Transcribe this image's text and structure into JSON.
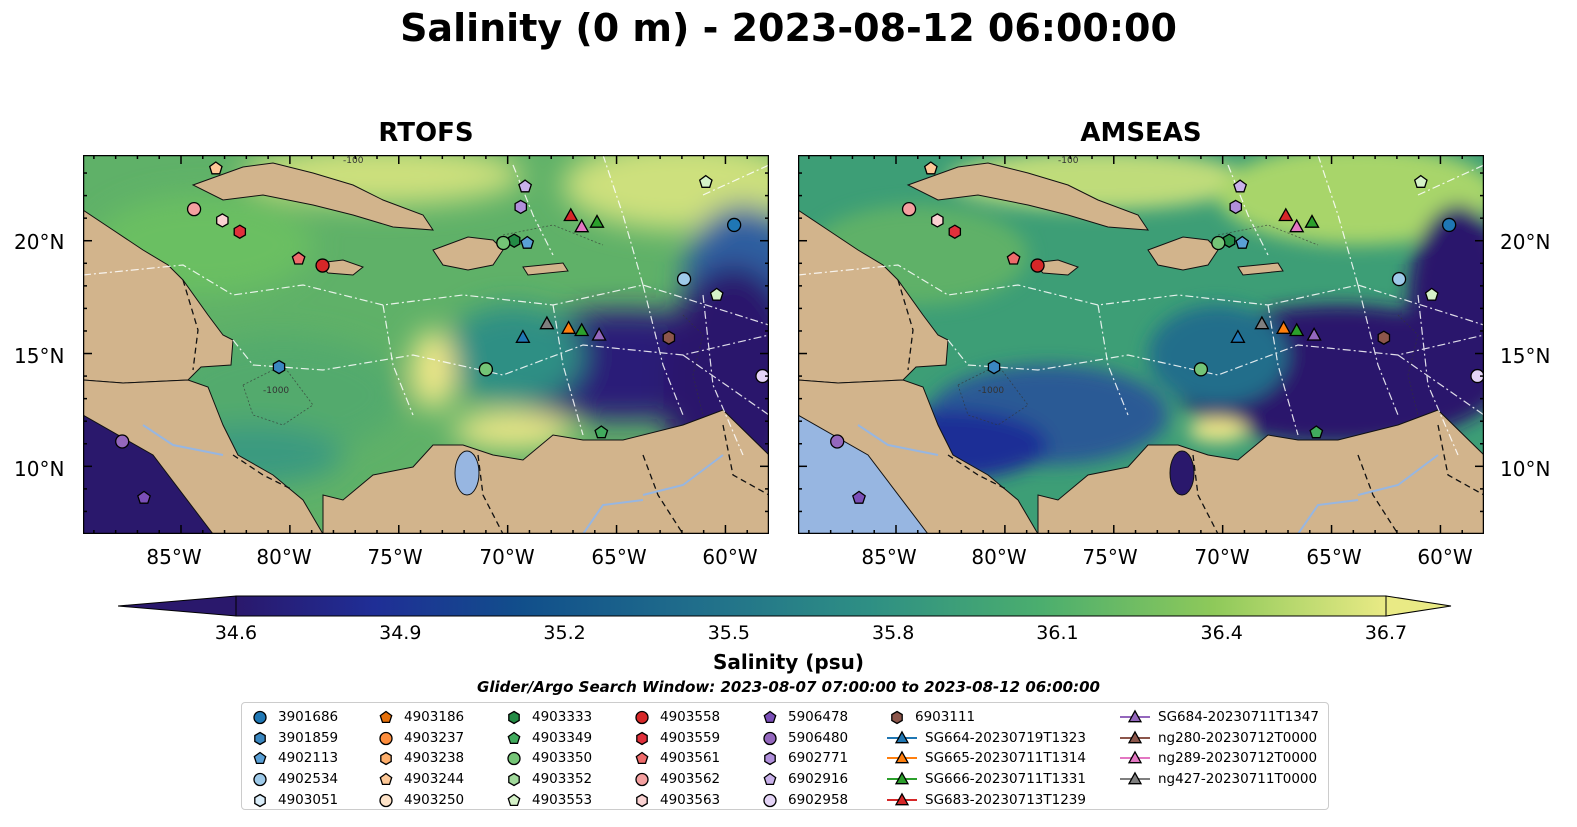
{
  "title": "Salinity (0 m) - 2023-08-12 06:00:00",
  "panels": [
    {
      "title": "RTOFS"
    },
    {
      "title": "AMSEAS"
    }
  ],
  "lat_labels": [
    "20°N",
    "15°N",
    "10°N"
  ],
  "lon_labels": [
    "85°W",
    "80°W",
    "75°W",
    "70°W",
    "65°W",
    "60°W"
  ],
  "colorbar": {
    "label": "Salinity (psu)",
    "ticks": [
      "34.6",
      "34.9",
      "35.2",
      "35.5",
      "35.8",
      "36.1",
      "36.4",
      "36.7"
    ],
    "vmin": 34.6,
    "vmax": 36.7,
    "colormap": "haline",
    "extend": "both"
  },
  "contour_labels": [
    "-100",
    "-1000"
  ],
  "search_window": "Glider/Argo Search Window: 2023-08-07 07:00:00 to 2023-08-12 06:00:00",
  "colors": {
    "land": "#d2b48c",
    "lake": "#97b6e1",
    "salinity_low": "#2a186c",
    "salinity_high": "#e8e888"
  },
  "legend": [
    [
      {
        "label": "3901686",
        "marker": "circle",
        "color": "#1f77b4"
      },
      {
        "label": "3901859",
        "marker": "hexagon",
        "color": "#3a87c0"
      },
      {
        "label": "4902113",
        "marker": "pentagon",
        "color": "#5aa0d6"
      },
      {
        "label": "4902534",
        "marker": "circle",
        "color": "#9ecae9"
      },
      {
        "label": "4903051",
        "marker": "hexagon",
        "color": "#dbeefa"
      }
    ],
    [
      {
        "label": "4903186",
        "marker": "pentagon",
        "color": "#e6700b"
      },
      {
        "label": "4903237",
        "marker": "circle",
        "color": "#fd8d3c"
      },
      {
        "label": "4903238",
        "marker": "hexagon",
        "color": "#fdae6b"
      },
      {
        "label": "4903244",
        "marker": "pentagon",
        "color": "#fdc897"
      },
      {
        "label": "4903250",
        "marker": "circle",
        "color": "#fee3c8"
      }
    ],
    [
      {
        "label": "4903333",
        "marker": "hexagon",
        "color": "#238b45"
      },
      {
        "label": "4903349",
        "marker": "pentagon",
        "color": "#41ab5d"
      },
      {
        "label": "4903350",
        "marker": "circle",
        "color": "#74c476"
      },
      {
        "label": "4903352",
        "marker": "hexagon",
        "color": "#a1d99b"
      },
      {
        "label": "4903553",
        "marker": "pentagon",
        "color": "#d5f2c8"
      }
    ],
    [
      {
        "label": "4903558",
        "marker": "circle",
        "color": "#d62728"
      },
      {
        "label": "4903559",
        "marker": "hexagon",
        "color": "#e0303b"
      },
      {
        "label": "4903561",
        "marker": "pentagon",
        "color": "#ef6b6b"
      },
      {
        "label": "4903562",
        "marker": "circle",
        "color": "#f4a0a0"
      },
      {
        "label": "4903563",
        "marker": "hexagon",
        "color": "#fad2d2"
      }
    ],
    [
      {
        "label": "5906478",
        "marker": "pentagon",
        "color": "#7b4fb8"
      },
      {
        "label": "5906480",
        "marker": "circle",
        "color": "#9467bd"
      },
      {
        "label": "6902771",
        "marker": "hexagon",
        "color": "#b08fdb"
      },
      {
        "label": "6902916",
        "marker": "pentagon",
        "color": "#c9b1ea"
      },
      {
        "label": "6902958",
        "marker": "circle",
        "color": "#e4d4f6"
      }
    ],
    [
      {
        "label": "6903111",
        "marker": "hexagon",
        "color": "#8c564b"
      },
      {
        "label": "SG664-20230719T1323",
        "marker": "triangle",
        "color": "#1f77b4",
        "line": true
      },
      {
        "label": "SG665-20230711T1314",
        "marker": "triangle",
        "color": "#ff7f0e",
        "line": true
      },
      {
        "label": "SG666-20230711T1331",
        "marker": "triangle",
        "color": "#2ca02c",
        "line": true
      },
      {
        "label": "SG683-20230713T1239",
        "marker": "triangle",
        "color": "#d62728",
        "line": true
      }
    ],
    [
      {
        "label": "SG684-20230711T1347",
        "marker": "triangle",
        "color": "#9467bd",
        "line": true
      },
      {
        "label": "ng280-20230712T0000",
        "marker": "triangle",
        "color": "#8c564b",
        "line": true
      },
      {
        "label": "ng289-20230712T0000",
        "marker": "triangle",
        "color": "#e377c2",
        "line": true
      },
      {
        "label": "ng427-20230711T0000",
        "marker": "triangle",
        "color": "#7f7f7f",
        "line": true
      }
    ]
  ],
  "observations": [
    {
      "label": "4903562",
      "lon": -84.4,
      "lat": 21.4
    },
    {
      "label": "4903563",
      "lon": -83.1,
      "lat": 20.9
    },
    {
      "label": "4903559",
      "lon": -82.3,
      "lat": 20.4
    },
    {
      "label": "4903244",
      "lon": -83.4,
      "lat": 23.2
    },
    {
      "label": "4903561",
      "lon": -79.6,
      "lat": 19.2
    },
    {
      "label": "4903558",
      "lon": -78.5,
      "lat": 18.9
    },
    {
      "label": "3901859",
      "lon": -80.5,
      "lat": 14.4
    },
    {
      "label": "4903333",
      "lon": -69.7,
      "lat": 20.0
    },
    {
      "label": "4903350",
      "lon": -70.2,
      "lat": 19.9
    },
    {
      "label": "4902113",
      "lon": -69.1,
      "lat": 19.9
    },
    {
      "label": "6902771",
      "lon": -69.4,
      "lat": 21.5
    },
    {
      "label": "6902916",
      "lon": -69.2,
      "lat": 22.4
    },
    {
      "label": "SG683-20230713T1239",
      "lon": -67.1,
      "lat": 21.1
    },
    {
      "label": "ng289-20230712T0000",
      "lon": -66.6,
      "lat": 20.6
    },
    {
      "label": "SG666-20230711T1331",
      "lon": -65.9,
      "lat": 20.8
    },
    {
      "label": "3901686",
      "lon": -59.6,
      "lat": 20.7
    },
    {
      "label": "4902534",
      "lon": -61.9,
      "lat": 18.3
    },
    {
      "label": "4903553",
      "lon": -60.4,
      "lat": 17.6
    },
    {
      "label": "4903553",
      "lon": -60.9,
      "lat": 22.6
    },
    {
      "label": "SG664-20230719T1323",
      "lon": -69.3,
      "lat": 15.7
    },
    {
      "label": "ng427-20230711T0000",
      "lon": -68.2,
      "lat": 16.3
    },
    {
      "label": "SG665-20230711T1314",
      "lon": -67.2,
      "lat": 16.1
    },
    {
      "label": "SG666-20230711T1331",
      "lon": -66.6,
      "lat": 16.0
    },
    {
      "label": "SG684-20230711T1347",
      "lon": -65.8,
      "lat": 15.8
    },
    {
      "label": "6903111",
      "lon": -62.6,
      "lat": 15.7
    },
    {
      "label": "4903350",
      "lon": -71.0,
      "lat": 14.3
    },
    {
      "label": "6902958",
      "lon": -58.3,
      "lat": 14.0
    },
    {
      "label": "4903349",
      "lon": -65.7,
      "lat": 11.5
    },
    {
      "label": "5906480",
      "lon": -87.7,
      "lat": 11.1
    },
    {
      "label": "5906478",
      "lon": -86.7,
      "lat": 8.6
    }
  ]
}
